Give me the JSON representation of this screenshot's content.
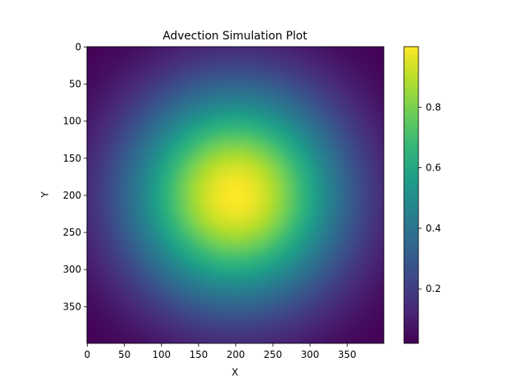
{
  "chart_data": {
    "type": "heatmap",
    "title": "Advection Simulation Plot",
    "xlabel": "X",
    "ylabel": "Y",
    "colormap": "viridis",
    "x_range": [
      0,
      400
    ],
    "y_range": [
      0,
      400
    ],
    "y_inverted": true,
    "x_ticks": [
      0,
      50,
      100,
      150,
      200,
      250,
      300,
      350
    ],
    "y_ticks": [
      0,
      50,
      100,
      150,
      200,
      250,
      300,
      350
    ],
    "center": [
      200,
      200
    ],
    "peak_value": 1.0,
    "corner_value": 0.02,
    "colorbar": {
      "range": [
        0.02,
        1.0
      ],
      "ticks": [
        0.2,
        0.4,
        0.6,
        0.8
      ],
      "tick_labels": [
        "0.2",
        "0.4",
        "0.6",
        "0.8"
      ]
    },
    "grid": false,
    "legend": "none"
  },
  "colors": {
    "viridis_stops": [
      "#440154",
      "#482878",
      "#3e4989",
      "#31688e",
      "#26828e",
      "#1f9e89",
      "#35b779",
      "#6ece58",
      "#b5de2b",
      "#fde725"
    ]
  }
}
